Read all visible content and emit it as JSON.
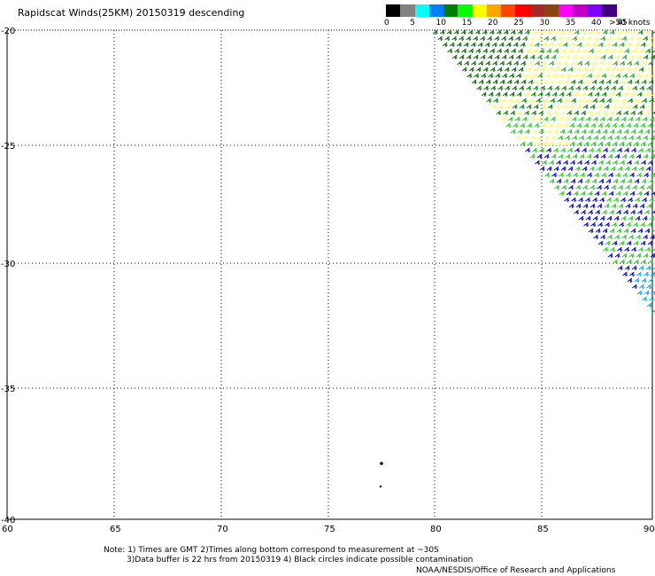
{
  "title": "Rapidscat Winds(25KM) 20150319 descending",
  "legend": {
    "unit_label": ">50 knots",
    "ticks": [
      "0",
      "5",
      "10",
      "15",
      "20",
      "25",
      "30",
      "35",
      "40",
      "45"
    ],
    "colors": [
      "#000000",
      "#808080",
      "#00ffff",
      "#0080ff",
      "#008000",
      "#00ff00",
      "#ffff00",
      "#ffa500",
      "#ff4500",
      "#ff0000",
      "#a52a2a",
      "#8b4513",
      "#ff00ff",
      "#c000c0",
      "#8000ff",
      "#400080"
    ]
  },
  "axes": {
    "lon_ticks": [
      "60",
      "65",
      "70",
      "75",
      "80",
      "85",
      "90"
    ],
    "lat_ticks": [
      "-20",
      "-25",
      "-30",
      "-35",
      "-40"
    ]
  },
  "notes": {
    "line1": "Note: 1) Times are GMT 2)Times along bottom correspond to measurement at ~30S",
    "line2": "3)Data buffer is 22 hrs from 20150319 4) Black circles indicate possible contamination",
    "source": "NOAA/NESDIS/Office of Research and Applications"
  }
}
